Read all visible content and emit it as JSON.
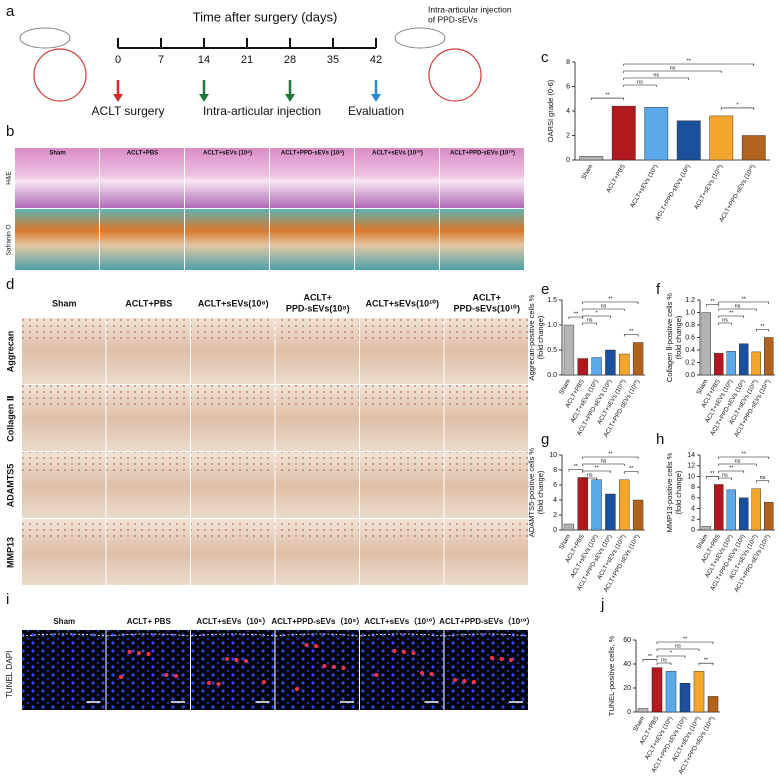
{
  "panel_labels": [
    "a",
    "b",
    "c",
    "d",
    "e",
    "f",
    "g",
    "h",
    "i",
    "j"
  ],
  "timeline": {
    "title": "Time after surgery (days)",
    "days": [
      0,
      7,
      14,
      21,
      28,
      35,
      42
    ],
    "events": [
      "ACLT surgery",
      "Intra-articular injection",
      "Evaluation"
    ],
    "note": [
      "Intra-articular injection",
      "of PPD-sEVs"
    ]
  },
  "histology": {
    "columns": [
      "Sham",
      "ACLT+PBS",
      "ACLT+sEVs (10⁸)",
      "ACLT+PPD-sEVs (10⁸)",
      "ACLT+sEVs (10¹⁰)",
      "ACLT+PPD-sEVs (10¹⁰)"
    ],
    "rows": [
      "H&E",
      "Safranin O"
    ]
  },
  "ihc": {
    "columns": [
      [
        "Sham"
      ],
      [
        "ACLT+PBS"
      ],
      [
        "ACLT+sEVs(10⁸)"
      ],
      [
        "ACLT+",
        "PPD-sEVs(10⁸)"
      ],
      [
        "ACLT+sEVs(10¹⁰)"
      ],
      [
        "ACLT+",
        "PPD-sEVs(10¹⁰)"
      ]
    ],
    "rows": [
      "Aggrecan",
      "Collagen Ⅱ",
      "ADAMTS5",
      "MMP13"
    ]
  },
  "tunel": {
    "columns": [
      "Sham",
      "ACLT+ PBS",
      "ACLT+sEVs（10⁸）",
      "ACLT+PPD-sEVs（10⁸）",
      "ACLT+sEVs（10¹⁰）",
      "ACLT+PPD-sEVs（10¹⁰）"
    ],
    "stain_labels": [
      "TUNEL",
      "DAPI"
    ]
  },
  "chart_data": [
    {
      "type": "bar",
      "ylabel": "OARSI grade (0-6)",
      "categories": [
        "Sham",
        "ACLT+PBS",
        "ACLT+sEVs (10⁸)",
        "ACLT+PPD-sEVs (10⁸)",
        "ACLT+sEVs (10¹⁰)",
        "ACLT+PPD-sEVs (10¹⁰)"
      ],
      "values": [
        0.3,
        4.4,
        4.3,
        3.2,
        3.6,
        2.0
      ],
      "colors": [
        "#b3b3b3",
        "#b0191e",
        "#5ba8ea",
        "#1c4f9c",
        "#f4a52c",
        "#b0631f"
      ],
      "ylim": [
        0,
        8
      ],
      "yticks": [
        0,
        2,
        4,
        6,
        8
      ],
      "significance": [
        "**",
        "ns",
        "ns",
        "ns",
        "**",
        "*"
      ]
    },
    {
      "type": "bar",
      "ylabel": "Aggrecan-positive cells %",
      "ylabel2": "(fold change)",
      "categories": [
        "Sham",
        "ACLT+PBS",
        "ACLT+sEVs (10⁸)",
        "ACLT+PPD-sEVs (10⁸)",
        "ACLT+sEVs (10¹⁰)",
        "ACLT+PPD-sEVs (10¹⁰)"
      ],
      "values": [
        1.0,
        0.33,
        0.35,
        0.5,
        0.42,
        0.65
      ],
      "colors": [
        "#b3b3b3",
        "#b0191e",
        "#5ba8ea",
        "#1c4f9c",
        "#f4a52c",
        "#b0631f"
      ],
      "ylim": [
        0,
        1.5
      ],
      "yticks": [
        {
          "value": 0,
          "label": "0.0"
        },
        0.5,
        {
          "value": 1,
          "label": "1.0"
        },
        1.5
      ],
      "significance": [
        "**",
        "ns",
        "*",
        "ns",
        "**",
        "**"
      ]
    },
    {
      "type": "bar",
      "ylabel": "Collagen Ⅱ-positive cells %",
      "ylabel2": "(fold change)",
      "categories": [
        "Sham",
        "ACLT+PBS",
        "ACLT+sEVs (10⁸)",
        "ACLT+PPD-sEVs (10⁸)",
        "ACLT+sEVs (10¹⁰)",
        "ACLT+PPD-sEVs (10¹⁰)"
      ],
      "values": [
        1.0,
        0.35,
        0.38,
        0.5,
        0.37,
        0.6
      ],
      "colors": [
        "#b3b3b3",
        "#b0191e",
        "#5ba8ea",
        "#1c4f9c",
        "#f4a52c",
        "#b0631f"
      ],
      "ylim": [
        0,
        1.2
      ],
      "yticks": [
        {
          "value": 0,
          "label": "0.0"
        },
        0.2,
        0.4,
        0.6,
        0.8,
        {
          "value": 1,
          "label": "1.0"
        },
        1.2
      ],
      "significance": [
        "**",
        "ns",
        "**",
        "ns",
        "**",
        "**"
      ]
    },
    {
      "type": "bar",
      "ylabel": "ADAMTS5-positive cells %",
      "ylabel2": "(fold change)",
      "categories": [
        "Sham",
        "ACLT+PBS",
        "ACLT+sEVs (10⁸)",
        "ACLT+PPD-sEVs (10⁸)",
        "ACLT+sEVs (10¹⁰)",
        "ACLT+PPD-sEVs (10¹⁰)"
      ],
      "values": [
        0.8,
        7.0,
        6.7,
        4.8,
        6.7,
        4.0
      ],
      "colors": [
        "#b3b3b3",
        "#b0191e",
        "#5ba8ea",
        "#1c4f9c",
        "#f4a52c",
        "#b0631f"
      ],
      "ylim": [
        0,
        10
      ],
      "yticks": [
        0,
        2,
        4,
        6,
        8,
        10
      ],
      "significance": [
        "**",
        "ns",
        "**",
        "ns",
        "**",
        "**"
      ]
    },
    {
      "type": "bar",
      "ylabel": "MMP13-positive cells %",
      "ylabel2": "(fold change)",
      "categories": [
        "Sham",
        "ACLT+PBS",
        "ACLT+sEVs (10⁸)",
        "ACLT+PPD-sEVs (10⁸)",
        "ACLT+sEVs (10¹⁰)",
        "ACLT+PPD-sEVs (10¹⁰)"
      ],
      "values": [
        0.7,
        8.5,
        7.5,
        6.0,
        7.7,
        5.2
      ],
      "colors": [
        "#b3b3b3",
        "#b0191e",
        "#5ba8ea",
        "#1c4f9c",
        "#f4a52c",
        "#b0631f"
      ],
      "ylim": [
        0,
        14
      ],
      "yticks": [
        0,
        2,
        4,
        6,
        8,
        10,
        12,
        14
      ],
      "significance": [
        "**",
        "ns",
        "**",
        "ns",
        "**",
        "ns"
      ]
    },
    {
      "type": "bar",
      "ylabel": "TUNEL-positive cells, %",
      "categories": [
        "Sham",
        "ACLT+PBS",
        "ACLT+sEVs (10⁸)",
        "ACLT+PPD-sEVs (10⁸)",
        "ACLT+sEVs (10¹⁰)",
        "ACLT+PPD-sEVs (10¹⁰)"
      ],
      "values": [
        3,
        37,
        34,
        24,
        34,
        13
      ],
      "colors": [
        "#b3b3b3",
        "#b0191e",
        "#5ba8ea",
        "#1c4f9c",
        "#f4a52c",
        "#b0631f"
      ],
      "ylim": [
        0,
        60
      ],
      "yticks": [
        0,
        20,
        40,
        60
      ],
      "significance": [
        "**",
        "ns",
        "*",
        "ns",
        "**",
        "**"
      ]
    }
  ]
}
